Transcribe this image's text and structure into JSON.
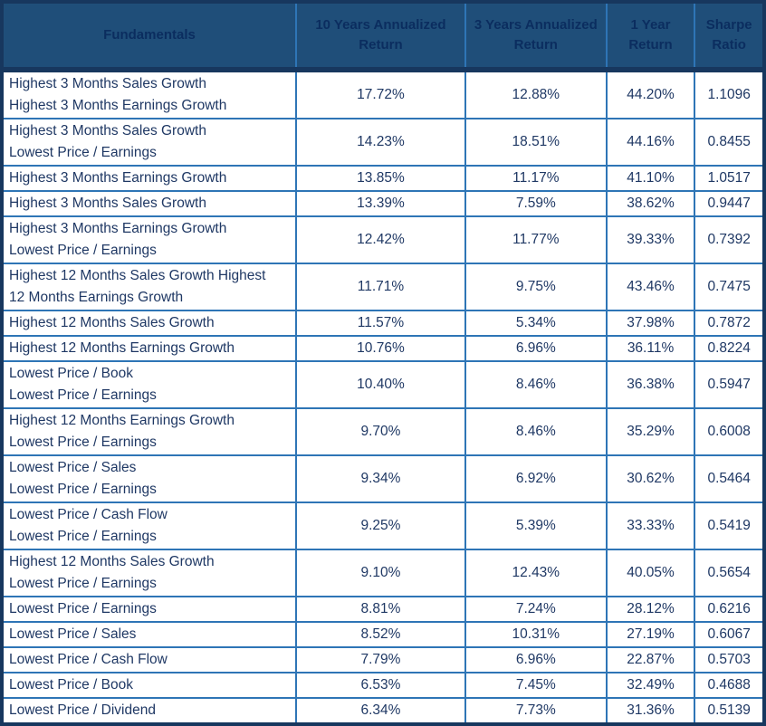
{
  "colors": {
    "header_bg": "#1F4E79",
    "header_text": "#0B2D5F",
    "body_text": "#1F3864",
    "grid_border": "#2E75B6",
    "outer_border": "#17375E",
    "row_bg": "#FFFFFF"
  },
  "table": {
    "columns": [
      {
        "key": "fundamentals",
        "label": "Fundamentals"
      },
      {
        "key": "y10",
        "label": "10 Years Annualized Return"
      },
      {
        "key": "y3",
        "label": "3 Years Annualized Return"
      },
      {
        "key": "y1",
        "label": "1 Year Return"
      },
      {
        "key": "sharpe",
        "label": "Sharpe Ratio"
      }
    ],
    "rows": [
      {
        "fundamentals": [
          "Highest 3 Months Sales Growth",
          "Highest 3 Months Earnings Growth"
        ],
        "y10": "17.72%",
        "y3": "12.88%",
        "y1": "44.20%",
        "sharpe": "1.1096"
      },
      {
        "fundamentals": [
          "Highest 3 Months Sales Growth",
          "Lowest Price / Earnings"
        ],
        "y10": "14.23%",
        "y3": "18.51%",
        "y1": "44.16%",
        "sharpe": "0.8455"
      },
      {
        "fundamentals": [
          "Highest 3 Months Earnings Growth"
        ],
        "y10": "13.85%",
        "y3": "11.17%",
        "y1": "41.10%",
        "sharpe": "1.0517"
      },
      {
        "fundamentals": [
          "Highest 3 Months Sales Growth"
        ],
        "y10": "13.39%",
        "y3": "7.59%",
        "y1": "38.62%",
        "sharpe": "0.9447"
      },
      {
        "fundamentals": [
          "Highest 3 Months Earnings Growth",
          "Lowest Price / Earnings"
        ],
        "y10": "12.42%",
        "y3": "11.77%",
        "y1": "39.33%",
        "sharpe": "0.7392"
      },
      {
        "fundamentals": [
          "Highest 12 Months Sales Growth Highest",
          "12 Months Earnings Growth"
        ],
        "y10": "11.71%",
        "y3": "9.75%",
        "y1": "43.46%",
        "sharpe": "0.7475"
      },
      {
        "fundamentals": [
          "Highest 12 Months Sales Growth"
        ],
        "y10": "11.57%",
        "y3": "5.34%",
        "y1": "37.98%",
        "sharpe": "0.7872"
      },
      {
        "fundamentals": [
          "Highest 12 Months Earnings Growth"
        ],
        "y10": "10.76%",
        "y3": "6.96%",
        "y1": "36.11%",
        "sharpe": "0.8224"
      },
      {
        "fundamentals": [
          "Lowest Price / Book",
          "Lowest Price / Earnings"
        ],
        "y10": "10.40%",
        "y3": "8.46%",
        "y1": "36.38%",
        "sharpe": "0.5947"
      },
      {
        "fundamentals": [
          "Highest 12 Months Earnings Growth",
          "Lowest Price / Earnings"
        ],
        "y10": "9.70%",
        "y3": "8.46%",
        "y1": "35.29%",
        "sharpe": "0.6008"
      },
      {
        "fundamentals": [
          "Lowest Price / Sales",
          "Lowest Price / Earnings"
        ],
        "y10": "9.34%",
        "y3": "6.92%",
        "y1": "30.62%",
        "sharpe": "0.5464"
      },
      {
        "fundamentals": [
          "Lowest Price / Cash Flow",
          "Lowest Price / Earnings"
        ],
        "y10": "9.25%",
        "y3": "5.39%",
        "y1": "33.33%",
        "sharpe": "0.5419"
      },
      {
        "fundamentals": [
          "Highest 12 Months Sales Growth",
          "Lowest Price / Earnings"
        ],
        "y10": "9.10%",
        "y3": "12.43%",
        "y1": "40.05%",
        "sharpe": "0.5654"
      },
      {
        "fundamentals": [
          "Lowest Price / Earnings"
        ],
        "y10": "8.81%",
        "y3": "7.24%",
        "y1": "28.12%",
        "sharpe": "0.6216"
      },
      {
        "fundamentals": [
          "Lowest Price / Sales"
        ],
        "y10": "8.52%",
        "y3": "10.31%",
        "y1": "27.19%",
        "sharpe": "0.6067"
      },
      {
        "fundamentals": [
          "Lowest Price / Cash Flow"
        ],
        "y10": "7.79%",
        "y3": "6.96%",
        "y1": "22.87%",
        "sharpe": "0.5703"
      },
      {
        "fundamentals": [
          "Lowest Price / Book"
        ],
        "y10": "6.53%",
        "y3": "7.45%",
        "y1": "32.49%",
        "sharpe": "0.4688"
      },
      {
        "fundamentals": [
          "Lowest Price / Dividend"
        ],
        "y10": "6.34%",
        "y3": "7.73%",
        "y1": "31.36%",
        "sharpe": "0.5139"
      }
    ]
  }
}
